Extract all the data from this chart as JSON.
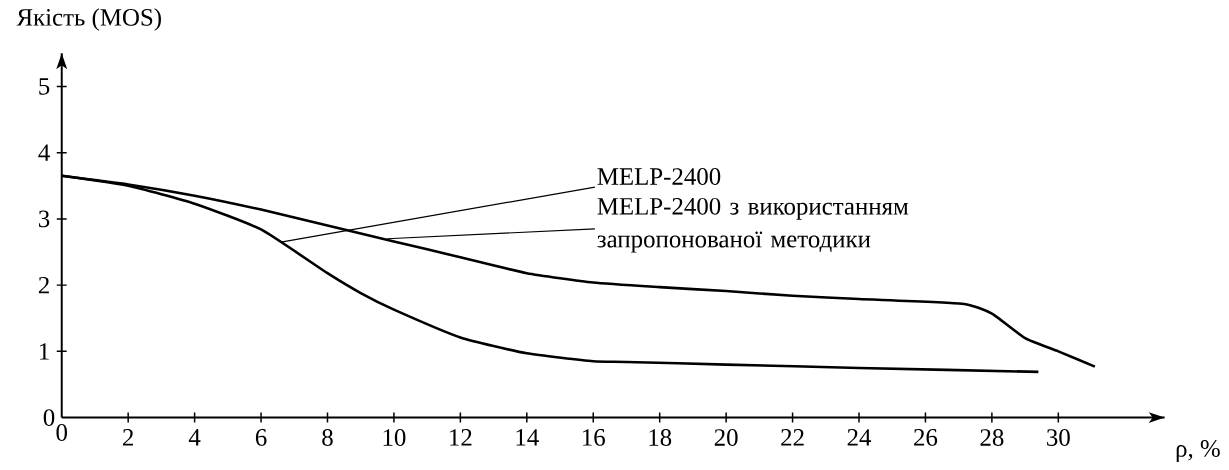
{
  "chart_data": {
    "type": "line",
    "xlabel": "ρ, %",
    "ylabel": "Якість (MOS)",
    "xlim": [
      0,
      33.2
    ],
    "ylim": [
      0,
      5.5
    ],
    "xticks": [
      0,
      2,
      4,
      6,
      8,
      10,
      12,
      14,
      16,
      18,
      20,
      22,
      24,
      26,
      28,
      30
    ],
    "yticks": [
      0,
      1,
      2,
      3,
      4,
      5
    ],
    "series": [
      {
        "color": "#000000",
        "x": [
          0,
          2,
          4,
          6,
          8,
          9,
          10,
          12,
          14,
          16,
          17,
          20,
          24,
          29.4
        ],
        "values": [
          3.65,
          3.5,
          3.23,
          2.84,
          2.18,
          1.88,
          1.63,
          1.21,
          0.97,
          0.85,
          0.84,
          0.8,
          0.75,
          0.69
        ]
      },
      {
        "color": "#000000",
        "x": [
          0,
          2,
          4,
          6,
          8,
          10,
          12,
          14,
          16,
          18,
          20,
          22,
          24,
          27.1,
          28,
          29,
          30,
          31.1
        ],
        "values": [
          3.65,
          3.52,
          3.35,
          3.14,
          2.9,
          2.66,
          2.42,
          2.18,
          2.04,
          1.97,
          1.91,
          1.84,
          1.79,
          1.72,
          1.57,
          1.2,
          1.0,
          0.77
        ]
      }
    ],
    "annotations": [
      {
        "text": "MELP-2400",
        "x": 6.6,
        "y": 2.65
      },
      {
        "text": "MELP-2400 з використанням запропонованої методики",
        "x": 9.8,
        "y": 2.7
      }
    ]
  }
}
